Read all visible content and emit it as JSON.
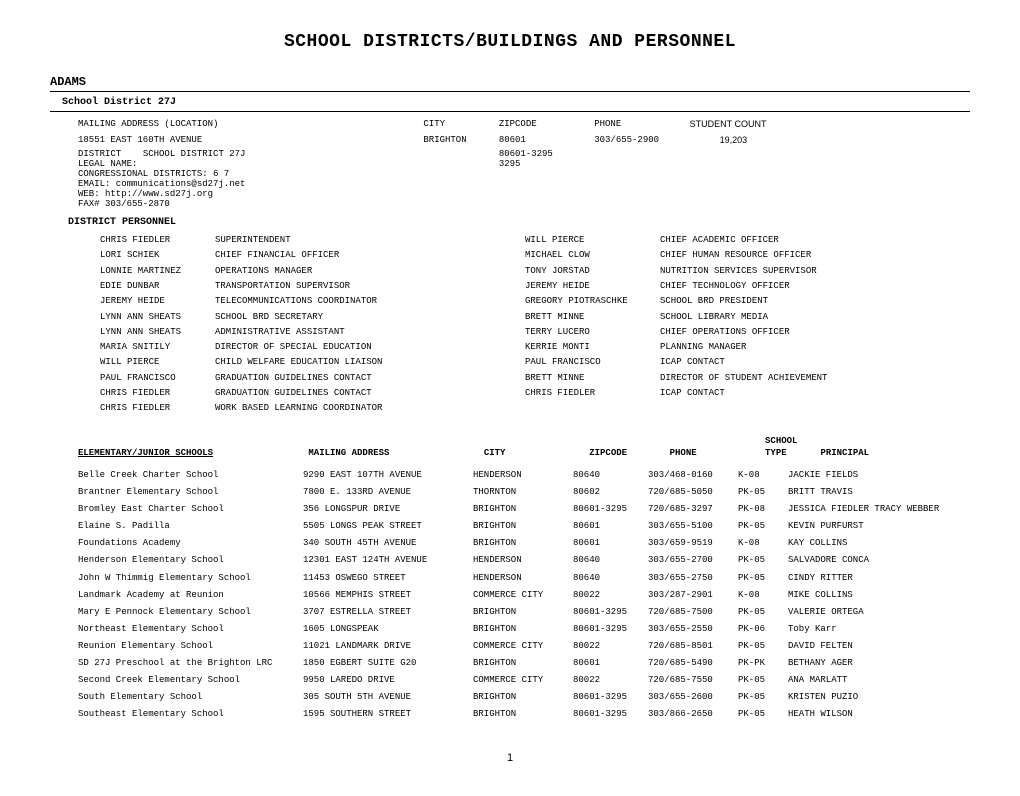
{
  "page": {
    "title": "SCHOOL DISTRICTS/BUILDINGS AND PERSONNEL",
    "county": "ADAMS",
    "district_heading": "School District 27J",
    "page_number": "1"
  },
  "headers": {
    "mailing": "MAILING ADDRESS (LOCATION)",
    "city": "CITY",
    "zip": "ZIPCODE",
    "phone": "PHONE",
    "student_count": "STUDENT COUNT"
  },
  "district_info": {
    "mailing_line": "18551 EAST 160TH AVENUE",
    "city": "BRIGHTON",
    "zip1": "80601",
    "zip2": "80601-3295",
    "zip3": "3295",
    "phone": "303/655-2900",
    "student_count": "19,203",
    "district_label": "DISTRICT",
    "district_value": "SCHOOL DISTRICT 27J",
    "legal_name": "LEGAL NAME:",
    "congressional": "CONGRESSIONAL DISTRICTS: 6  7",
    "email": "EMAIL: communications@sd27j.net",
    "web": "WEB:   http://www.sd27j.org",
    "fax": "FAX#   303/655-2870"
  },
  "sections": {
    "personnel": "DISTRICT PERSONNEL"
  },
  "personnel": [
    {
      "na": "CHRIS FIEDLER",
      "ra": "SUPERINTENDENT",
      "nb": "WILL PIERCE",
      "rb": "CHIEF ACADEMIC OFFICER"
    },
    {
      "na": "LORI SCHIEK",
      "ra": "CHIEF FINANCIAL OFFICER",
      "nb": "MICHAEL CLOW",
      "rb": "CHIEF HUMAN RESOURCE OFFICER"
    },
    {
      "na": "LONNIE MARTINEZ",
      "ra": "OPERATIONS MANAGER",
      "nb": "TONY JORSTAD",
      "rb": "NUTRITION SERVICES SUPERVISOR"
    },
    {
      "na": "EDIE DUNBAR",
      "ra": "TRANSPORTATION SUPERVISOR",
      "nb": "JEREMY HEIDE",
      "rb": "CHIEF TECHNOLOGY OFFICER"
    },
    {
      "na": "JEREMY  HEIDE",
      "ra": "TELECOMMUNICATIONS COORDINATOR",
      "nb": "GREGORY PIOTRASCHKE",
      "rb": "SCHOOL BRD PRESIDENT"
    },
    {
      "na": "LYNN ANN SHEATS",
      "ra": "SCHOOL BRD SECRETARY",
      "nb": "BRETT MINNE",
      "rb": "SCHOOL LIBRARY MEDIA"
    },
    {
      "na": "LYNN ANN SHEATS",
      "ra": "ADMINISTRATIVE ASSISTANT",
      "nb": "TERRY LUCERO",
      "rb": "CHIEF OPERATIONS OFFICER"
    },
    {
      "na": "MARIA SNITILY",
      "ra": "DIRECTOR OF SPECIAL EDUCATION",
      "nb": "KERRIE MONTI",
      "rb": "PLANNING MANAGER"
    },
    {
      "na": "WILL PIERCE",
      "ra": "CHILD WELFARE EDUCATION LIAISON",
      "nb": "PAUL FRANCISCO",
      "rb": "ICAP CONTACT"
    },
    {
      "na": "PAUL FRANCISCO",
      "ra": "GRADUATION GUIDELINES CONTACT",
      "nb": "BRETT MINNE",
      "rb": "DIRECTOR OF STUDENT ACHIEVEMENT"
    },
    {
      "na": "CHRIS FIEDLER",
      "ra": "GRADUATION GUIDELINES CONTACT",
      "nb": "CHRIS FIEDLER",
      "rb": "ICAP CONTACT"
    },
    {
      "na": "CHRIS FIEDLER",
      "ra": "WORK BASED LEARNING COORDINATOR",
      "nb": "",
      "rb": ""
    }
  ],
  "schools_header": {
    "name": "ELEMENTARY/JUNIOR SCHOOLS",
    "addr": "MAILING ADDRESS",
    "city": "CITY",
    "zip": "ZIPCODE",
    "phone": "PHONE",
    "type1": "SCHOOL",
    "type2": "TYPE",
    "principal": "PRINCIPAL"
  },
  "schools": [
    {
      "name": "Belle Creek Charter School",
      "addr": "9290 EAST 107TH AVENUE",
      "city": "HENDERSON",
      "zip": "80640",
      "phone": "303/468-0160",
      "type": "K-08",
      "prin": "JACKIE FIELDS"
    },
    {
      "name": "Brantner Elementary School",
      "addr": "7800 E. 133RD AVENUE",
      "city": "THORNTON",
      "zip": "80602",
      "phone": "720/685-5050",
      "type": "PK-05",
      "prin": "BRITT TRAVIS"
    },
    {
      "name": "Bromley East Charter School",
      "addr": "356 LONGSPUR DRIVE",
      "city": "BRIGHTON",
      "zip": "80601-3295",
      "phone": "720/685-3297",
      "type": "PK-08",
      "prin": "JESSICA  FIEDLER TRACY WEBBER"
    },
    {
      "name": "Elaine S. Padilla",
      "addr": "5505 LONGS PEAK STREET",
      "city": "BRIGHTON",
      "zip": "80601",
      "phone": "303/655-5100",
      "type": "PK-05",
      "prin": "KEVIN PURFURST"
    },
    {
      "name": "Foundations Academy",
      "addr": "340 SOUTH 45TH AVENUE",
      "city": "BRIGHTON",
      "zip": "80601",
      "phone": "303/659-9519",
      "type": "K-08",
      "prin": "KAY COLLINS"
    },
    {
      "name": "Henderson Elementary School",
      "addr": "12301 EAST 124TH AVENUE",
      "city": "HENDERSON",
      "zip": "80640",
      "phone": "303/655-2700",
      "type": "PK-05",
      "prin": "SALVADORE CONCA"
    },
    {
      "name": "John W Thimmig Elementary School",
      "addr": "11453 OSWEGO STREET",
      "city": "HENDERSON",
      "zip": "80640",
      "phone": "303/655-2750",
      "type": "PK-05",
      "prin": "CINDY RITTER"
    },
    {
      "name": "Landmark Academy at Reunion",
      "addr": "10566 MEMPHIS STREET",
      "city": "COMMERCE CITY",
      "zip": "80022",
      "phone": "303/287-2901",
      "type": "K-08",
      "prin": "MIKE COLLINS"
    },
    {
      "name": "Mary E Pennock Elementary School",
      "addr": "3707 ESTRELLA STREET",
      "city": "BRIGHTON",
      "zip": "80601-3295",
      "phone": "720/685-7500",
      "type": "PK-05",
      "prin": "VALERIE ORTEGA"
    },
    {
      "name": "Northeast Elementary School",
      "addr": "1605 LONGSPEAK",
      "city": "BRIGHTON",
      "zip": "80601-3295",
      "phone": "303/655-2550",
      "type": "PK-06",
      "prin": "Toby Karr"
    },
    {
      "name": "Reunion Elementary School",
      "addr": "11021 LANDMARK DRIVE",
      "city": "COMMERCE CITY",
      "zip": "80022",
      "phone": "720/685-8501",
      "type": "PK-05",
      "prin": "DAVID FELTEN"
    },
    {
      "name": "SD 27J Preschool at the Brighton LRC",
      "addr": "1850 EGBERT SUITE G20",
      "city": "BRIGHTON",
      "zip": "80601",
      "phone": "720/685-5490",
      "type": "PK-PK",
      "prin": "BETHANY AGER"
    },
    {
      "name": "Second Creek Elementary School",
      "addr": "9950 LAREDO DRIVE",
      "city": "COMMERCE CITY",
      "zip": "80022",
      "phone": "720/685-7550",
      "type": "PK-05",
      "prin": "ANA MARLATT"
    },
    {
      "name": "South Elementary School",
      "addr": "305 SOUTH 5TH AVENUE",
      "city": "BRIGHTON",
      "zip": "80601-3295",
      "phone": "303/655-2600",
      "type": "PK-05",
      "prin": "KRISTEN PUZIO"
    },
    {
      "name": "Southeast Elementary School",
      "addr": "1595 SOUTHERN STREET",
      "city": "BRIGHTON",
      "zip": "80601-3295",
      "phone": "303/866-2650",
      "type": "PK-05",
      "prin": "HEATH WILSON"
    }
  ]
}
